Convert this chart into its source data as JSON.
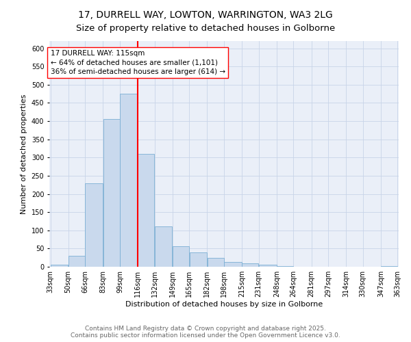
{
  "title_line1": "17, DURRELL WAY, LOWTON, WARRINGTON, WA3 2LG",
  "title_line2": "Size of property relative to detached houses in Golborne",
  "xlabel": "Distribution of detached houses by size in Golborne",
  "ylabel": "Number of detached properties",
  "bin_labels": [
    "33sqm",
    "50sqm",
    "66sqm",
    "83sqm",
    "99sqm",
    "116sqm",
    "132sqm",
    "149sqm",
    "165sqm",
    "182sqm",
    "198sqm",
    "215sqm",
    "231sqm",
    "248sqm",
    "264sqm",
    "281sqm",
    "297sqm",
    "314sqm",
    "330sqm",
    "347sqm",
    "363sqm"
  ],
  "bin_edges": [
    33,
    50,
    66,
    83,
    99,
    116,
    132,
    149,
    165,
    182,
    198,
    215,
    231,
    248,
    264,
    281,
    297,
    314,
    330,
    347,
    363
  ],
  "bar_heights": [
    5,
    30,
    230,
    405,
    475,
    310,
    110,
    57,
    40,
    25,
    14,
    10,
    5,
    2,
    0,
    0,
    0,
    0,
    0,
    2
  ],
  "bar_color": "#c9d9ed",
  "bar_edge_color": "#7bafd4",
  "grid_color": "#c8d4e8",
  "background_color": "#eaeff8",
  "vline_x": 116,
  "vline_color": "red",
  "annotation_text": "17 DURRELL WAY: 115sqm\n← 64% of detached houses are smaller (1,101)\n36% of semi-detached houses are larger (614) →",
  "annotation_box_color": "white",
  "annotation_box_edge_color": "red",
  "ylim": [
    0,
    620
  ],
  "yticks": [
    0,
    50,
    100,
    150,
    200,
    250,
    300,
    350,
    400,
    450,
    500,
    550,
    600
  ],
  "footer_text": "Contains HM Land Registry data © Crown copyright and database right 2025.\nContains public sector information licensed under the Open Government Licence v3.0.",
  "title_fontsize": 10,
  "axis_label_fontsize": 8,
  "tick_fontsize": 7,
  "annotation_fontsize": 7.5,
  "footer_fontsize": 6.5
}
